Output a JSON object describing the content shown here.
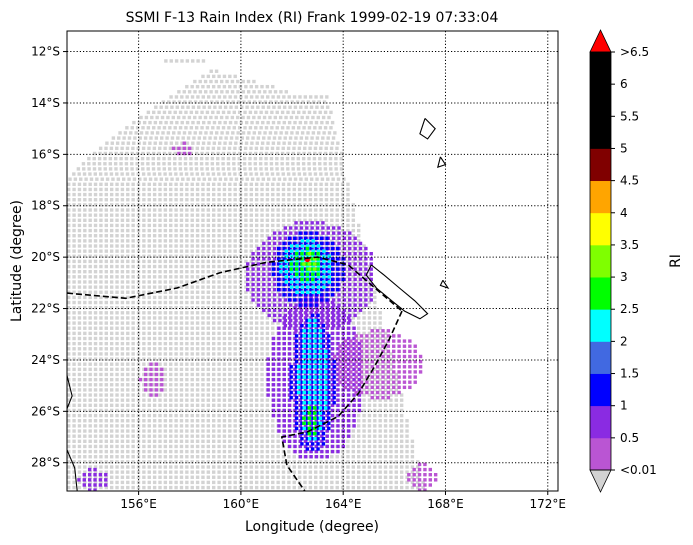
{
  "chart_data": {
    "type": "heatmap",
    "title": "SSMI F-13 Rain Index (RI) Frank 1999-02-19 07:33:04",
    "xlabel": "Longitude (degree)",
    "ylabel": "Latitude (degree)",
    "xlim": [
      153.2,
      172.4
    ],
    "ylim": [
      -29.1,
      -11.2
    ],
    "x_ticks": [
      156,
      160,
      164,
      168,
      172
    ],
    "x_tick_labels": [
      "156°E",
      "160°E",
      "164°E",
      "168°E",
      "172°E"
    ],
    "y_ticks": [
      -12,
      -14,
      -16,
      -18,
      -20,
      -22,
      -24,
      -26,
      -28
    ],
    "y_tick_labels": [
      "12°S",
      "14°S",
      "16°S",
      "18°S",
      "20°S",
      "22°S",
      "24°S",
      "26°S",
      "28°S"
    ],
    "grid": true,
    "swath_color": "#d3d3d3",
    "colorbar": {
      "label": "RI",
      "tick_labels": [
        "<0.01",
        "0.5",
        "1",
        "1.5",
        "2",
        "2.5",
        "3",
        "3.5",
        "4",
        "4.5",
        "5",
        "5.5",
        "6",
        ">6.5"
      ],
      "under_color": "#d3d3d3",
      "over_color": "#ff0000",
      "colors": [
        "#ba55d3",
        "#8a2be2",
        "#0000ff",
        "#4169e1",
        "#00ffff",
        "#00ff00",
        "#7fff00",
        "#ffff00",
        "#ffa500",
        "#800000",
        "#000000",
        "#000000",
        "#000000"
      ]
    },
    "rain_regions": [
      {
        "lon": [
          160.2,
          165.2
        ],
        "lat": [
          -22.8,
          -18.6
        ],
        "ri": 0.5
      },
      {
        "lon": [
          161.0,
          164.7
        ],
        "lat": [
          -27.8,
          -21.5
        ],
        "ri": 0.5
      },
      {
        "lon": [
          163.6,
          167.0
        ],
        "lat": [
          -25.4,
          -22.8
        ],
        "ri": 0.3
      },
      {
        "lon": [
          161.2,
          164.0
        ],
        "lat": [
          -21.8,
          -19.0
        ],
        "ri": 1.2
      },
      {
        "lon": [
          161.9,
          163.6
        ],
        "lat": [
          -27.5,
          -22.2
        ],
        "ri": 1.2
      },
      {
        "lon": [
          161.5,
          163.5
        ],
        "lat": [
          -21.4,
          -19.3
        ],
        "ri": 2.2
      },
      {
        "lon": [
          162.2,
          163.3
        ],
        "lat": [
          -27.0,
          -22.4
        ],
        "ri": 2.2
      },
      {
        "lon": [
          161.9,
          163.1
        ],
        "lat": [
          -20.9,
          -19.6
        ],
        "ri": 2.8
      },
      {
        "lon": [
          162.4,
          163.0
        ],
        "lat": [
          -26.9,
          -25.6
        ],
        "ri": 2.8
      },
      {
        "lon": [
          162.4,
          162.9
        ],
        "lat": [
          -20.5,
          -19.8
        ],
        "ri": 3.2
      },
      {
        "lon": [
          157.3,
          158.1
        ],
        "lat": [
          -16.0,
          -15.5
        ],
        "ri": 0.4
      },
      {
        "lon": [
          156.0,
          157.0
        ],
        "lat": [
          -25.3,
          -24.1
        ],
        "ri": 0.4
      },
      {
        "lon": [
          166.5,
          167.6
        ],
        "lat": [
          -29.0,
          -28.0
        ],
        "ri": 0.4
      },
      {
        "lon": [
          153.6,
          154.8
        ],
        "lat": [
          -29.0,
          -28.2
        ],
        "ri": 0.6
      }
    ]
  }
}
